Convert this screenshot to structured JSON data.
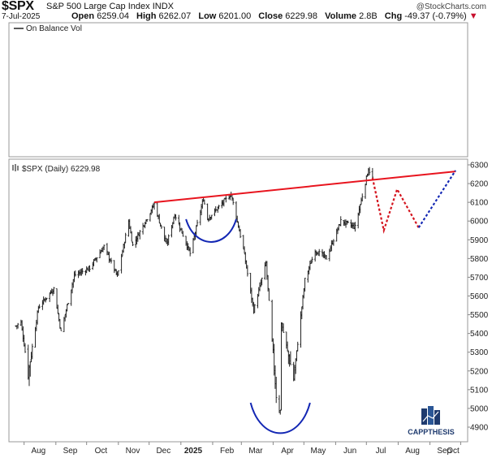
{
  "header": {
    "symbol": "$SPX",
    "name": "S&P 500 Large Cap Index",
    "exchange": "INDX",
    "date": "7-Jul-2025",
    "watermark": "@StockCharts.com",
    "quote": {
      "open_label": "Open",
      "open": "6259.04",
      "high_label": "High",
      "high": "6262.07",
      "low_label": "Low",
      "low": "6201.00",
      "close_label": "Close",
      "close": "6229.98",
      "volume_label": "Volume",
      "volume": "2.8B",
      "chg_label": "Chg",
      "chg": "-49.37 (-0.79%)",
      "chg_arrow": "▼"
    }
  },
  "obv_panel": {
    "legend": "On Balance Vol"
  },
  "price_panel": {
    "legend": "$SPX (Daily) 6229.98"
  },
  "logo": {
    "text": "CAPPTHESIS"
  },
  "colors": {
    "trendline": "#e8141e",
    "projection_red": "#d4141e",
    "projection_blue": "#1428b4",
    "cup_arc": "#1428b4",
    "bars": "#222222"
  },
  "chart_data": {
    "type": "ohlc",
    "x_axis_labels": [
      "Aug",
      "Sep",
      "Oct",
      "Nov",
      "Dec",
      "2025",
      "Feb",
      "Mar",
      "Apr",
      "May",
      "Jun",
      "Jul",
      "Aug",
      "Sep",
      "Oct"
    ],
    "y_axis_labels": [
      "6300",
      "6200",
      "6100",
      "6000",
      "5900",
      "5800",
      "5700",
      "5600",
      "5500",
      "5400",
      "5300",
      "5200",
      "5100",
      "5000",
      "4900"
    ],
    "ylim": [
      4870,
      6320
    ],
    "close_path": [
      {
        "date": "2024-07-24",
        "value": 5440
      },
      {
        "date": "2024-07-29",
        "value": 5460
      },
      {
        "date": "2024-08-05",
        "value": 5186
      },
      {
        "date": "2024-08-15",
        "value": 5540
      },
      {
        "date": "2024-08-30",
        "value": 5640
      },
      {
        "date": "2024-09-06",
        "value": 5408
      },
      {
        "date": "2024-09-19",
        "value": 5710
      },
      {
        "date": "2024-10-04",
        "value": 5750
      },
      {
        "date": "2024-10-18",
        "value": 5865
      },
      {
        "date": "2024-10-31",
        "value": 5705
      },
      {
        "date": "2024-11-11",
        "value": 6000
      },
      {
        "date": "2024-11-15",
        "value": 5870
      },
      {
        "date": "2024-12-06",
        "value": 6090
      },
      {
        "date": "2024-12-18",
        "value": 5872
      },
      {
        "date": "2024-12-26",
        "value": 6037
      },
      {
        "date": "2025-01-10",
        "value": 5827
      },
      {
        "date": "2025-01-23",
        "value": 6119
      },
      {
        "date": "2025-01-27",
        "value": 6012
      },
      {
        "date": "2025-02-19",
        "value": 6144
      },
      {
        "date": "2025-03-03",
        "value": 5850
      },
      {
        "date": "2025-03-13",
        "value": 5522
      },
      {
        "date": "2025-03-25",
        "value": 5776
      },
      {
        "date": "2025-04-04",
        "value": 5074
      },
      {
        "date": "2025-04-08",
        "value": 4982
      },
      {
        "date": "2025-04-09",
        "value": 5456
      },
      {
        "date": "2025-04-21",
        "value": 5158
      },
      {
        "date": "2025-05-02",
        "value": 5686
      },
      {
        "date": "2025-05-12",
        "value": 5844
      },
      {
        "date": "2025-05-23",
        "value": 5802
      },
      {
        "date": "2025-06-06",
        "value": 6000
      },
      {
        "date": "2025-06-20",
        "value": 5968
      },
      {
        "date": "2025-07-03",
        "value": 6279
      },
      {
        "date": "2025-07-07",
        "value": 6230
      }
    ],
    "annotations": {
      "resistance_trendline": [
        {
          "date": "2024-12-06",
          "value": 6100
        },
        {
          "date": "2025-09-26",
          "value": 6265
        }
      ],
      "projection_red": [
        {
          "date": "2025-07-07",
          "value": 6230
        },
        {
          "date": "2025-07-18",
          "value": 5950
        },
        {
          "date": "2025-07-31",
          "value": 6170
        },
        {
          "date": "2025-08-21",
          "value": 5965
        }
      ],
      "projection_blue": [
        {
          "date": "2025-08-21",
          "value": 5965
        },
        {
          "date": "2025-09-26",
          "value": 6270
        }
      ],
      "cup_small": {
        "from": "2025-01-06",
        "to": "2025-02-24",
        "bottom": 5890,
        "rim": 6010
      },
      "cup_large": {
        "from": "2025-03-10",
        "to": "2025-05-07",
        "bottom": 4870,
        "rim": 5030
      }
    }
  }
}
